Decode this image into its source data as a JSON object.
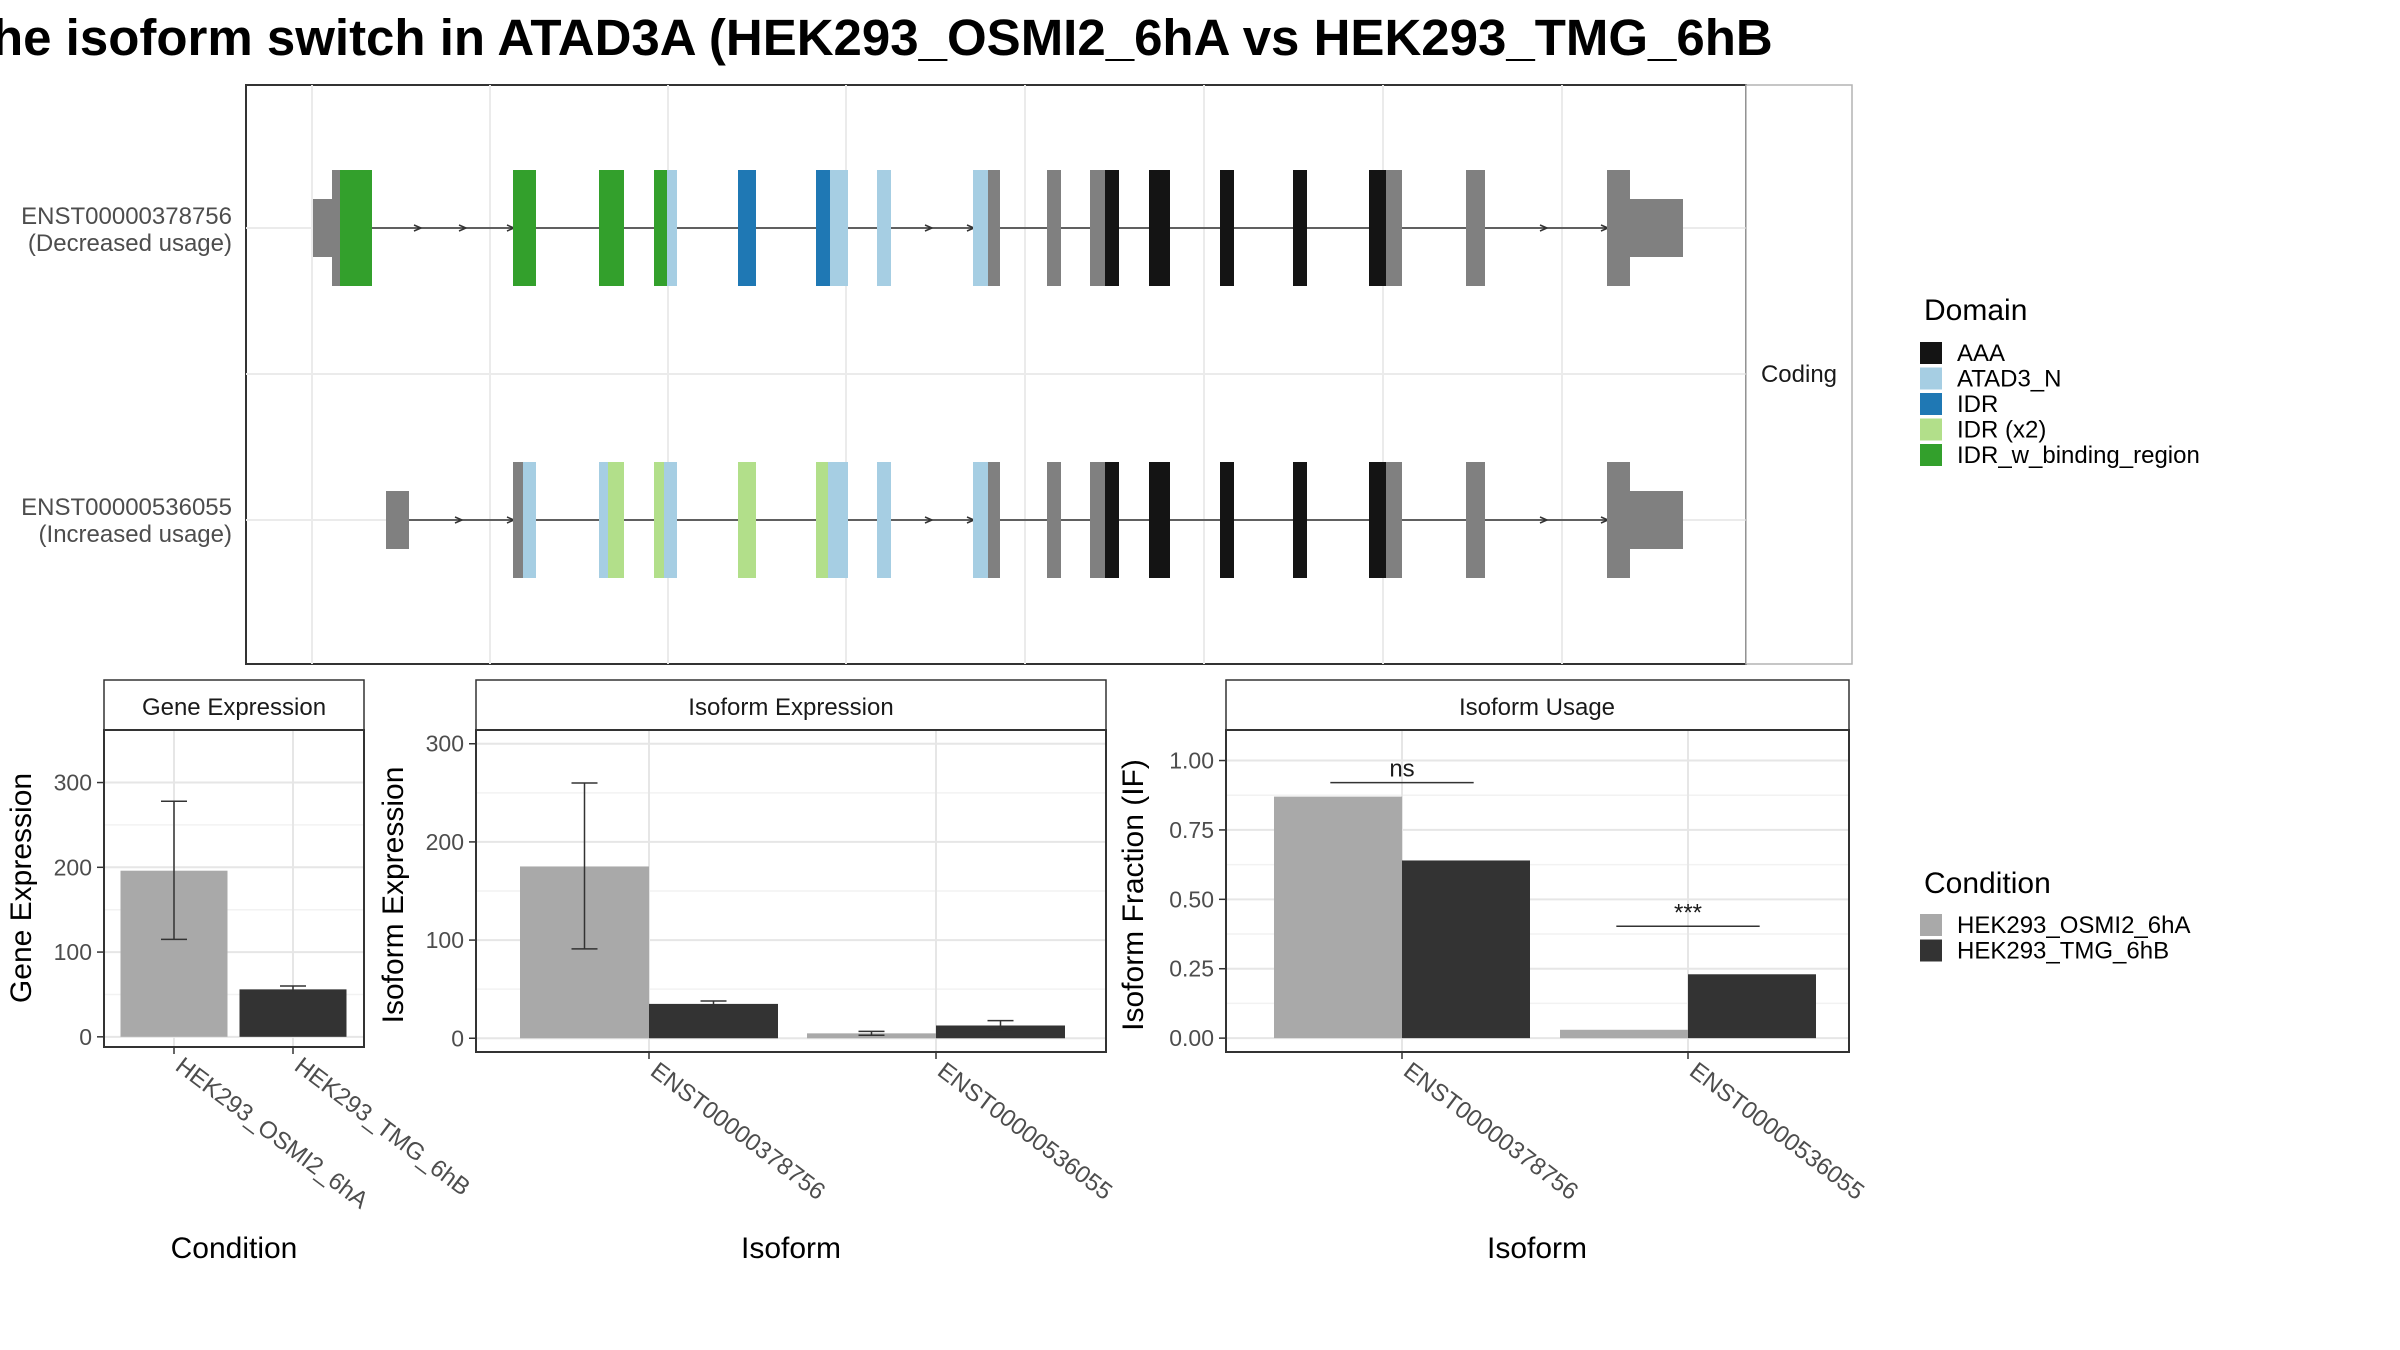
{
  "title": "he isoform switch in ATAD3A (HEK293_OSMI2_6hA vs HEK293_TMG_6hB",
  "colors": {
    "AAA": "#141414",
    "ATAD3_N": "#a6cee3",
    "IDR": "#1f78b4",
    "IDR_x2": "#b2df8a",
    "IDR_w_binding_region": "#33a02c",
    "noncoding": "#808080",
    "cond_a": "#a9a9a9",
    "cond_b": "#333333"
  },
  "structure": {
    "strip_label": "Coding",
    "transcripts": [
      {
        "id": "ENST00000378756",
        "note": "(Decreased usage)"
      },
      {
        "id": "ENST00000536055",
        "note": "(Increased usage)"
      }
    ]
  },
  "legend_domain": {
    "title": "Domain",
    "items": [
      {
        "label": "AAA",
        "color_key": "AAA"
      },
      {
        "label": "ATAD3_N",
        "color_key": "ATAD3_N"
      },
      {
        "label": "IDR",
        "color_key": "IDR"
      },
      {
        "label": "IDR (x2)",
        "color_key": "IDR_x2"
      },
      {
        "label": "IDR_w_binding_region",
        "color_key": "IDR_w_binding_region"
      }
    ]
  },
  "legend_condition": {
    "title": "Condition",
    "items": [
      {
        "label": "HEK293_OSMI2_6hA",
        "color_key": "cond_a"
      },
      {
        "label": "HEK293_TMG_6hB",
        "color_key": "cond_b"
      }
    ]
  },
  "chart_data": [
    {
      "type": "bar",
      "title": "Gene Expression",
      "xlabel": "Condition",
      "ylabel": "Gene Expression",
      "categories": [
        "HEK293_OSMI2_6hA",
        "HEK293_TMG_6hB"
      ],
      "values": [
        196,
        56
      ],
      "error_low": [
        115,
        52
      ],
      "error_high": [
        278,
        60
      ],
      "yticks": [
        0,
        100,
        200,
        300
      ],
      "ylim": [
        -12,
        362
      ]
    },
    {
      "type": "bar",
      "title": "Isoform Expression",
      "xlabel": "Isoform",
      "ylabel": "Isoform Expression",
      "categories": [
        "ENST00000378756",
        "ENST00000536055"
      ],
      "series": [
        {
          "name": "HEK293_OSMI2_6hA",
          "values": [
            175,
            5
          ],
          "error_low": [
            91,
            3
          ],
          "error_high": [
            260,
            7
          ]
        },
        {
          "name": "HEK293_TMG_6hB",
          "values": [
            35,
            13
          ],
          "error_low": [
            33,
            9
          ],
          "error_high": [
            38,
            18
          ]
        }
      ],
      "yticks": [
        0,
        100,
        200,
        300
      ],
      "ylim": [
        -14,
        314
      ]
    },
    {
      "type": "bar",
      "title": "Isoform Usage",
      "xlabel": "Isoform",
      "ylabel": "Isoform Fraction (IF)",
      "categories": [
        "ENST00000378756",
        "ENST00000536055"
      ],
      "series": [
        {
          "name": "HEK293_OSMI2_6hA",
          "values": [
            0.87,
            0.03
          ]
        },
        {
          "name": "HEK293_TMG_6hB",
          "values": [
            0.64,
            0.23
          ]
        }
      ],
      "annotations": [
        "ns",
        "***"
      ],
      "yticks": [
        0.0,
        0.25,
        0.5,
        0.75,
        1.0
      ],
      "yticklabels": [
        "0.00",
        "0.25",
        "0.50",
        "0.75",
        "1.00"
      ],
      "ylim": [
        -0.05,
        1.11
      ]
    }
  ]
}
